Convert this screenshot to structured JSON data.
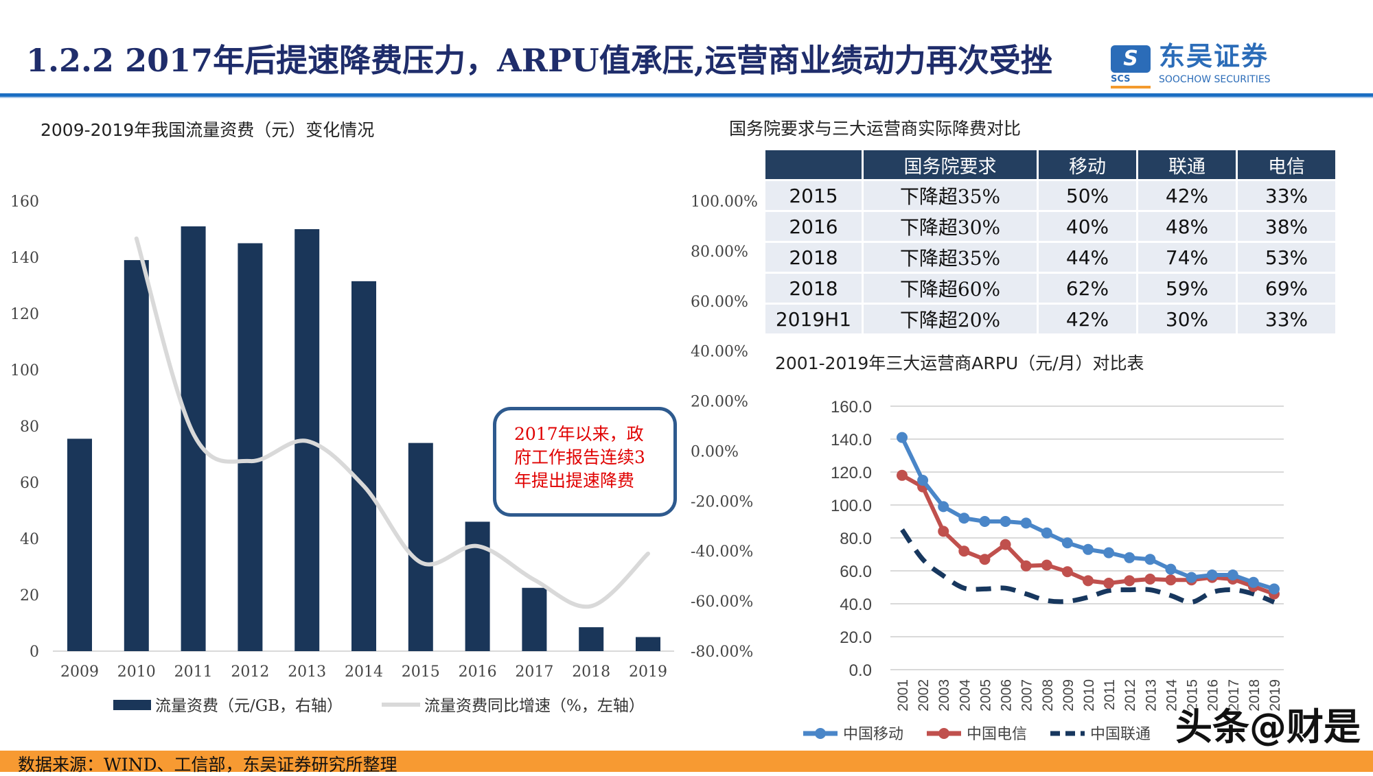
{
  "header": {
    "title": "1.2.2 2017年后提速降费压力，ARPU值承压,运营商业绩动力再次受挫",
    "logo": {
      "mark": "S",
      "cn": "东吴证券",
      "en": "SOOCHOW SECURITIES",
      "abbr": "SCS"
    }
  },
  "colors": {
    "title": "#1F2D6B",
    "rule": "#1B6EC2",
    "bars": "#1A3659",
    "growth_line": "#D9D9D9",
    "mobile": "#4A86C8",
    "telecom": "#C0504D",
    "unicom": "#17375E",
    "footer": "#F79A32",
    "callout_text": "#E00000"
  },
  "chart_data": [
    {
      "type": "bar",
      "title": "2009-2019年我国流量资费（元）变化情况",
      "categories": [
        "2009",
        "2010",
        "2011",
        "2012",
        "2013",
        "2014",
        "2015",
        "2016",
        "2017",
        "2018",
        "2019"
      ],
      "series": [
        {
          "name": "流量资费（元/GB，右轴）",
          "type": "bar",
          "axis": "left",
          "values": [
            75.5,
            139,
            151,
            145,
            150,
            131.5,
            74,
            46,
            22.5,
            8.5,
            5
          ]
        },
        {
          "name": "流量资费同比增速（%，左轴）",
          "type": "line",
          "axis": "right",
          "values": [
            null,
            85,
            7,
            -4,
            4,
            -14,
            -44.5,
            -38,
            -51.5,
            -62,
            -41
          ]
        }
      ],
      "y_left": {
        "range": [
          0,
          160
        ],
        "ticks": [
          "0",
          "20",
          "40",
          "60",
          "80",
          "100",
          "120",
          "140",
          "160"
        ]
      },
      "y_right": {
        "range": [
          -80,
          100
        ],
        "ticks": [
          "-80.00%",
          "-60.00%",
          "-40.00%",
          "-20.00%",
          "0.00%",
          "20.00%",
          "40.00%",
          "60.00%",
          "80.00%",
          "100.00%"
        ]
      },
      "grid": false,
      "legend": "bottom",
      "annotation": [
        "2017年以来，政",
        "府工作报告连续3",
        "年提出提速降费"
      ]
    },
    {
      "type": "line",
      "title": "2001-2019年三大运营商ARPU（元/月）对比表",
      "x": [
        "2001",
        "2002",
        "2003",
        "2004",
        "2005",
        "2006",
        "2007",
        "2008",
        "2009",
        "2010",
        "2011",
        "2012",
        "2013",
        "2014",
        "2015",
        "2016",
        "2017",
        "2018",
        "2019"
      ],
      "series": [
        {
          "name": "中国移动",
          "values": [
            141,
            115,
            99,
            92,
            90,
            90,
            89,
            83,
            77,
            73,
            71,
            68,
            67,
            61,
            56,
            57.5,
            57.5,
            53,
            49
          ]
        },
        {
          "name": "中国电信",
          "values": [
            118,
            111,
            84,
            72,
            67,
            76,
            63,
            63.5,
            59.5,
            54,
            52.5,
            54,
            55,
            54.5,
            54.5,
            56,
            55,
            50.5,
            46
          ]
        },
        {
          "name": "中国联通",
          "values": [
            85,
            67,
            57,
            49.5,
            49,
            49.5,
            46,
            42,
            41.5,
            44,
            48,
            48.5,
            48.5,
            45,
            41,
            47,
            48.5,
            46,
            41
          ]
        }
      ],
      "y_range": [
        0,
        160
      ],
      "y_ticks": [
        "0.0",
        "20.0",
        "40.0",
        "60.0",
        "80.0",
        "100.0",
        "120.0",
        "140.0",
        "160.0"
      ],
      "grid": true,
      "legend": "bottom"
    }
  ],
  "table": {
    "title": "国务院要求与三大运营商实际降费对比",
    "headers": [
      "",
      "国务院要求",
      "移动",
      "联通",
      "电信"
    ],
    "rows": [
      [
        "2015",
        "下降超35%",
        "50%",
        "42%",
        "33%"
      ],
      [
        "2016",
        "下降超30%",
        "40%",
        "48%",
        "38%"
      ],
      [
        "2018",
        "下降超35%",
        "44%",
        "74%",
        "53%"
      ],
      [
        "2018",
        "下降超60%",
        "62%",
        "59%",
        "69%"
      ],
      [
        "2019H1",
        "下降超20%",
        "42%",
        "30%",
        "33%"
      ]
    ]
  },
  "footer": {
    "source": "数据来源：WIND、工信部，东吴证券研究所整理"
  },
  "watermark": "头条@财是"
}
